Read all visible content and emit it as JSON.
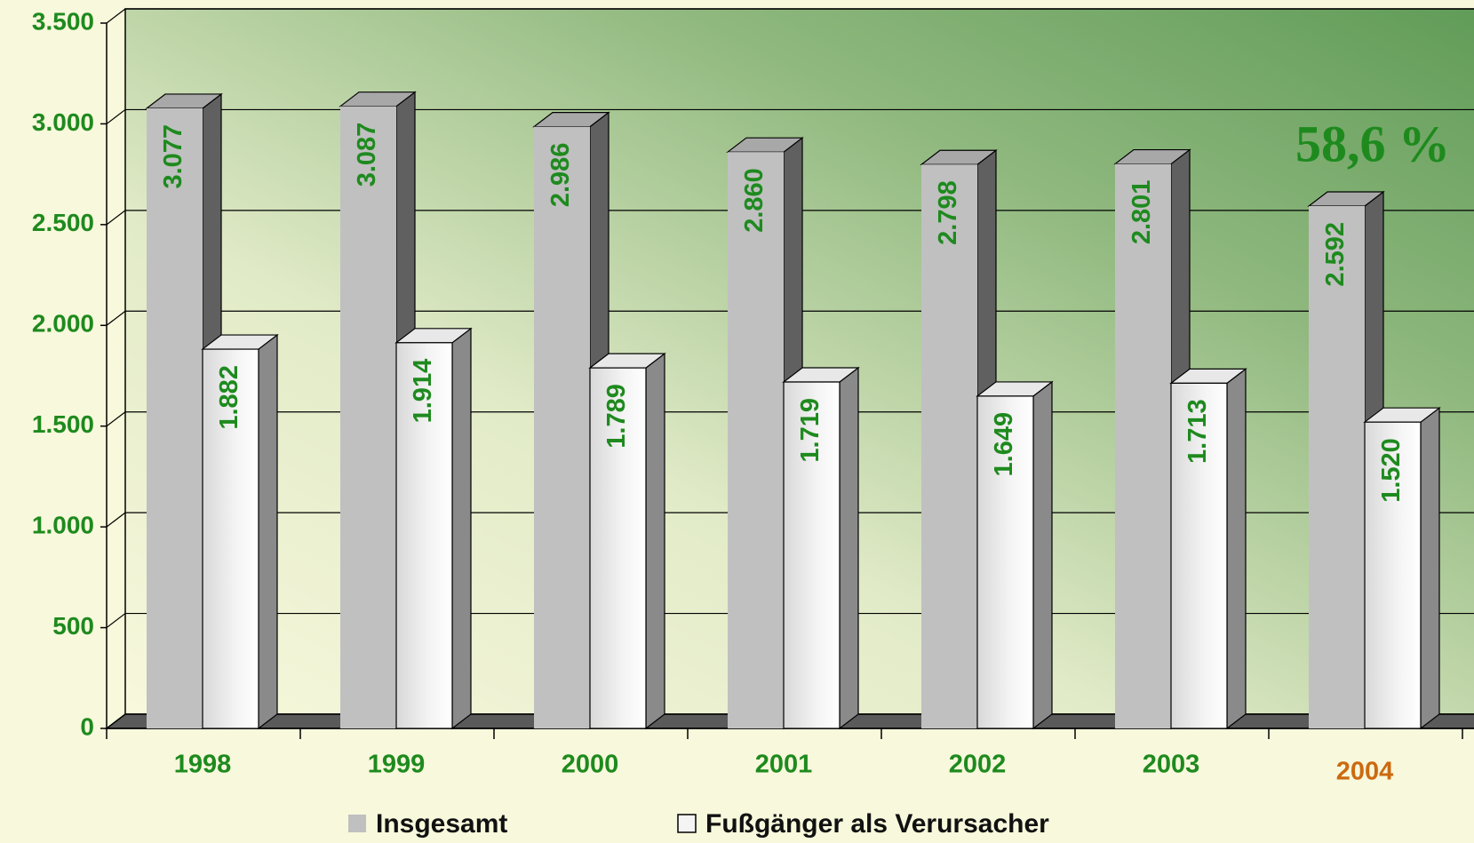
{
  "chart_data": {
    "type": "bar3d",
    "categories": [
      "1998",
      "1999",
      "2000",
      "2001",
      "2002",
      "2003",
      "2004"
    ],
    "category_colors": [
      "#1e8a1e",
      "#1e8a1e",
      "#1e8a1e",
      "#1e8a1e",
      "#1e8a1e",
      "#1e8a1e",
      "#cc6a10"
    ],
    "series": [
      {
        "name": "Insgesamt",
        "color": "#c0c0c0",
        "values": [
          3077,
          3087,
          2986,
          2860,
          2798,
          2801,
          2592
        ],
        "value_labels": [
          "3.077",
          "3.087",
          "2.986",
          "2.860",
          "2.798",
          "2.801",
          "2.592"
        ]
      },
      {
        "name": "Fußgänger als Verursacher",
        "color": "#f4f4f4",
        "values": [
          1882,
          1914,
          1789,
          1719,
          1649,
          1713,
          1520
        ],
        "value_labels": [
          "1.882",
          "1.914",
          "1.789",
          "1.719",
          "1.649",
          "1.713",
          "1.520"
        ]
      }
    ],
    "annotation": "58,6 %",
    "ylim": [
      0,
      3500
    ],
    "yticks": [
      0,
      500,
      {
        "value": 1000,
        "label": "1.000"
      },
      {
        "value": 1500,
        "label": "1.500"
      },
      {
        "value": 2000,
        "label": "2.000"
      },
      {
        "value": 2500,
        "label": "2.500"
      },
      {
        "value": 3000,
        "label": "3.000"
      },
      {
        "value": 3500,
        "label": "3.500"
      }
    ],
    "grid": true,
    "legend": "bottom"
  }
}
